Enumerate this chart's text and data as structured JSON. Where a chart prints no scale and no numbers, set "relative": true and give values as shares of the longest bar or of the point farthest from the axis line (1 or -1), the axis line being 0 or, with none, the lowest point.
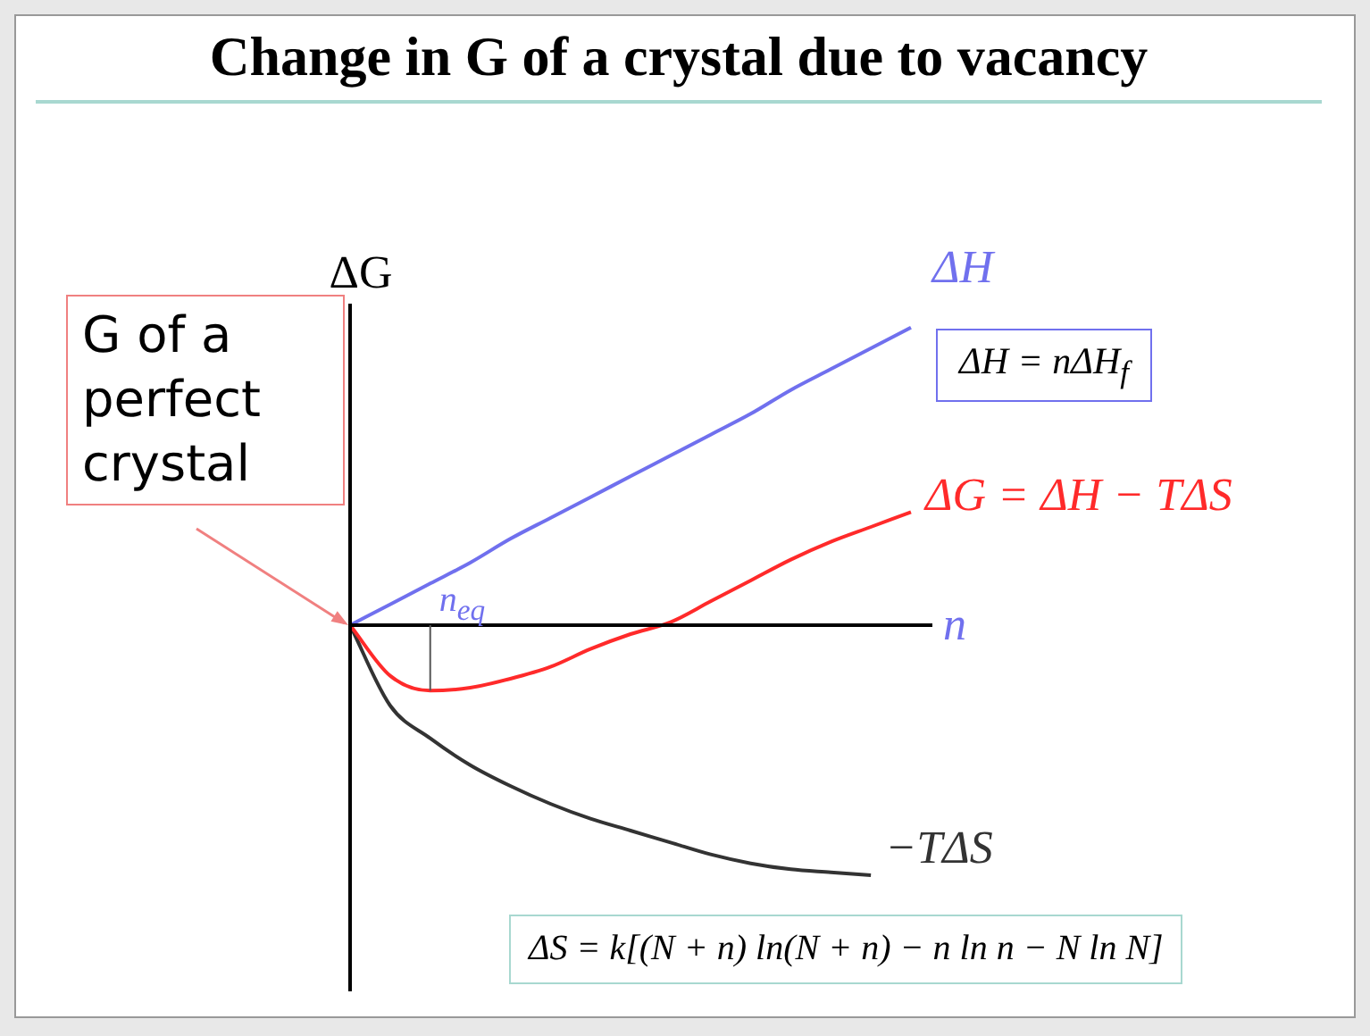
{
  "chart_data": {
    "type": "line",
    "title": "Change in G of a crystal due to vacancy",
    "xlabel": "n",
    "ylabel": "ΔG",
    "relative": true,
    "marker": "none",
    "categories": [
      null,
      null,
      null,
      null,
      null,
      null,
      null,
      null,
      null,
      null,
      null,
      null,
      null,
      null,
      null
    ],
    "series": [
      {
        "name": "ΔH",
        "color": "#7070ee",
        "values": [
          0,
          0.07,
          0.14,
          0.21,
          0.29,
          0.36,
          0.43,
          0.5,
          0.57,
          0.64,
          0.71,
          0.79,
          0.86,
          0.93,
          1
        ]
      },
      {
        "name": "ΔG = ΔH − TΔS",
        "color": "#ff2a2a",
        "values": [
          0,
          -0.17,
          -0.22,
          -0.21,
          -0.18,
          -0.14,
          -0.08,
          -0.03,
          0.01,
          0.08,
          0.15,
          0.22,
          0.28,
          0.33,
          0.38
        ]
      },
      {
        "name": "−TΔS",
        "color": "#333333",
        "values": [
          0,
          -0.27,
          -0.38,
          -0.47,
          -0.54,
          -0.6,
          -0.65,
          -0.69,
          -0.73,
          -0.77,
          -0.8,
          -0.82,
          -0.83,
          -0.84,
          null
        ]
      }
    ],
    "annotations": [
      "ΔH = nΔH$_{f}$",
      "G of a perfect crystal",
      "n$_{eq}$",
      "ΔS = k[(N + n) ln(N + n) − n ln n − N ln N]"
    ]
  }
}
